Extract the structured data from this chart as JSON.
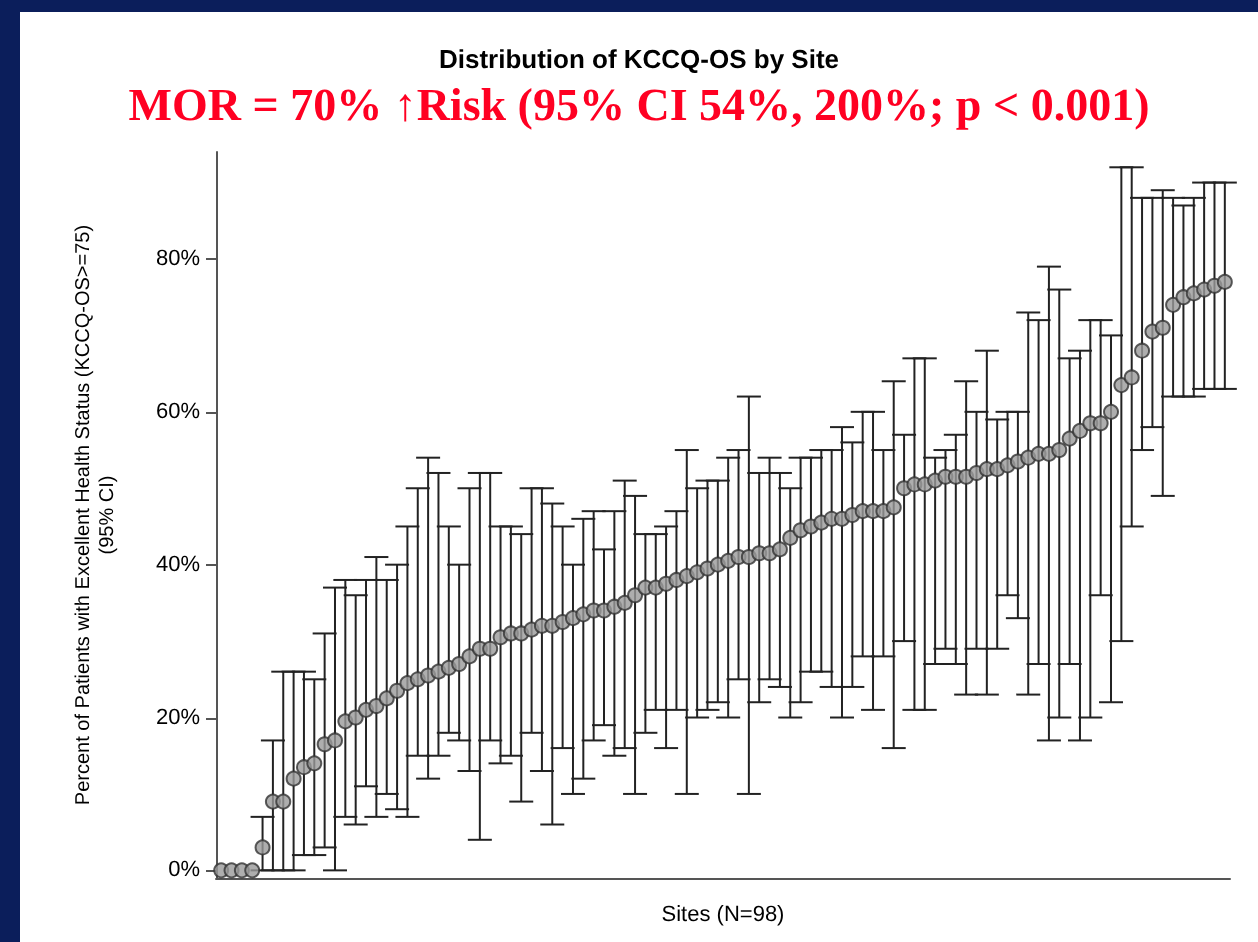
{
  "chart_data": {
    "type": "scatter",
    "title": "Distribution of KCCQ-OS by Site",
    "subtitle": "MOR = 70% ↑Risk (95% CI 54%, 200%; p < 0.001)",
    "xlabel": "Sites (N=98)",
    "ylabel": "Percent of Patients with Excellent Health Status (KCCQ-OS>=75)\n(95% CI)",
    "categories": [
      null,
      null,
      null,
      null,
      null,
      null,
      null,
      null,
      null,
      null,
      null,
      null,
      null,
      null,
      null,
      null,
      null,
      null,
      null,
      null,
      null,
      null,
      null,
      null,
      null,
      null,
      null,
      null,
      null,
      null,
      null,
      null,
      null,
      null,
      null,
      null,
      null,
      null,
      null,
      null,
      null,
      null,
      null,
      null,
      null,
      null,
      null,
      null,
      null,
      null,
      null,
      null,
      null,
      null,
      null,
      null,
      null,
      null,
      null,
      null,
      null,
      null,
      null,
      null,
      null,
      null,
      null,
      null,
      null,
      null,
      null,
      null,
      null,
      null,
      null,
      null,
      null,
      null,
      null,
      null,
      null,
      null,
      null,
      null,
      null,
      null,
      null,
      null,
      null,
      null,
      null,
      null,
      null,
      null,
      null,
      null,
      null,
      null
    ],
    "values": [
      0,
      0,
      0,
      0,
      3,
      9,
      9,
      12,
      13.5,
      14,
      16.5,
      17,
      19.5,
      20,
      21,
      21.5,
      22.5,
      23.5,
      24.5,
      25,
      25.5,
      26,
      26.5,
      27,
      28,
      29,
      29,
      30.5,
      31,
      31,
      31.5,
      32,
      32,
      32.5,
      33,
      33.5,
      34,
      34,
      34.5,
      35,
      36,
      37,
      37,
      37.5,
      38,
      38.5,
      39,
      39.5,
      40,
      40.5,
      41,
      41,
      41.5,
      41.5,
      42,
      43.5,
      44.5,
      45,
      45.5,
      46,
      46,
      46.5,
      47,
      47,
      47,
      47.5,
      50,
      50.5,
      50.5,
      51,
      51.5,
      51.5,
      51.5,
      52,
      52.5,
      52.5,
      53,
      53.5,
      54,
      54.5,
      54.5,
      55,
      56.5,
      57.5,
      58.5,
      58.5,
      60,
      63.5,
      64.5,
      68,
      70.5,
      71,
      74,
      75,
      75.5,
      76,
      76.5,
      77
    ],
    "errors": [
      null,
      null,
      null,
      null,
      [
        0,
        7
      ],
      [
        0,
        17
      ],
      [
        0,
        26
      ],
      [
        0,
        26
      ],
      [
        2,
        26
      ],
      [
        2,
        25
      ],
      [
        3,
        31
      ],
      [
        0,
        37
      ],
      [
        7,
        38
      ],
      [
        6,
        36
      ],
      [
        11,
        38
      ],
      [
        7,
        41
      ],
      [
        10,
        38
      ],
      [
        8,
        40
      ],
      [
        7,
        45
      ],
      [
        15,
        50
      ],
      [
        12,
        54
      ],
      [
        15,
        52
      ],
      [
        18,
        45
      ],
      [
        17,
        40
      ],
      [
        13,
        50
      ],
      [
        4,
        52
      ],
      [
        17,
        52
      ],
      [
        14,
        45
      ],
      [
        15,
        45
      ],
      [
        9,
        44
      ],
      [
        18,
        50
      ],
      [
        13,
        50
      ],
      [
        6,
        48
      ],
      [
        16,
        45
      ],
      [
        10,
        40
      ],
      [
        12,
        46
      ],
      [
        17,
        47
      ],
      [
        19,
        42
      ],
      [
        15,
        47
      ],
      [
        16,
        51
      ],
      [
        10,
        49
      ],
      [
        18,
        44
      ],
      [
        21,
        44
      ],
      [
        16,
        45
      ],
      [
        21,
        47
      ],
      [
        10,
        55
      ],
      [
        20,
        50
      ],
      [
        21,
        51
      ],
      [
        22,
        51
      ],
      [
        20,
        54
      ],
      [
        25,
        55
      ],
      [
        10,
        62
      ],
      [
        22,
        52
      ],
      [
        25,
        54
      ],
      [
        24,
        52
      ],
      [
        20,
        50
      ],
      [
        22,
        54
      ],
      [
        26,
        54
      ],
      [
        26,
        55
      ],
      [
        24,
        55
      ],
      [
        20,
        58
      ],
      [
        24,
        56
      ],
      [
        28,
        60
      ],
      [
        21,
        60
      ],
      [
        28,
        55
      ],
      [
        16,
        64
      ],
      [
        30,
        57
      ],
      [
        21,
        67
      ],
      [
        21,
        67
      ],
      [
        27,
        54
      ],
      [
        29,
        55
      ],
      [
        27,
        57
      ],
      [
        23,
        64
      ],
      [
        29,
        60
      ],
      [
        23,
        68
      ],
      [
        29,
        59
      ],
      [
        36,
        60
      ],
      [
        33,
        60
      ],
      [
        23,
        73
      ],
      [
        27,
        72
      ],
      [
        17,
        79
      ],
      [
        20,
        76
      ],
      [
        27,
        67
      ],
      [
        17,
        68
      ],
      [
        20,
        72
      ],
      [
        36,
        72
      ],
      [
        22,
        70
      ],
      [
        30,
        92
      ],
      [
        45,
        92
      ],
      [
        55,
        88
      ],
      [
        58,
        88
      ],
      [
        49,
        89
      ],
      [
        62,
        88
      ],
      [
        62,
        87
      ],
      [
        62,
        88
      ],
      [
        63,
        90
      ],
      [
        63,
        90
      ],
      [
        63,
        90
      ]
    ],
    "color": "#9a9a9a",
    "marker": "circle",
    "ylim": [
      -1,
      94
    ],
    "yticks": [
      {
        "value": 0,
        "label": "0%"
      },
      {
        "value": 20,
        "label": "20%"
      },
      {
        "value": 40,
        "label": "40%"
      },
      {
        "value": 60,
        "label": "60%"
      },
      {
        "value": 80,
        "label": "80%"
      }
    ],
    "grid": false
  }
}
